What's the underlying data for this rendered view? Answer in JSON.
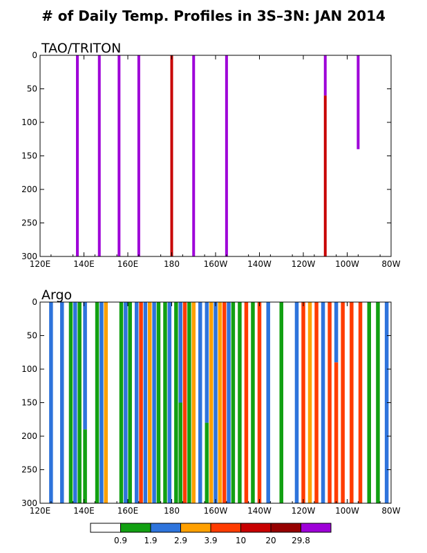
{
  "title": "# of Daily Temp. Profiles in 3S–3N: JAN 2014",
  "colors": {
    "white": "#ffffff",
    "green": "#12a012",
    "blue": "#2e74dc",
    "orange": "#ffa000",
    "red_orange": "#ff3c00",
    "red": "#c80000",
    "dark_red": "#960000",
    "purple": "#9e00d8"
  },
  "colorbar": {
    "colors": [
      "#ffffff",
      "#12a012",
      "#2e74dc",
      "#ffa000",
      "#ff3c00",
      "#c80000",
      "#960000",
      "#9e00d8"
    ],
    "labels": [
      "0.9",
      "1.9",
      "2.9",
      "3.9",
      "10",
      "20",
      "29.8"
    ]
  },
  "chart_data": [
    {
      "type": "bar",
      "title": "TAO/TRITON",
      "x_ticks": [
        "120E",
        "140E",
        "160E",
        "180",
        "160W",
        "140W",
        "120W",
        "100W",
        "80W"
      ],
      "y_ticks": [
        "0",
        "50",
        "100",
        "150",
        "200",
        "250",
        "300"
      ],
      "xlim": [
        120,
        280
      ],
      "ylim": [
        300,
        0
      ],
      "profiles": [
        {
          "lon": 137,
          "segments": [
            {
              "from": 0,
              "to": 300,
              "color": "#9e00d8"
            }
          ]
        },
        {
          "lon": 147,
          "segments": [
            {
              "from": 0,
              "to": 300,
              "color": "#9e00d8"
            }
          ]
        },
        {
          "lon": 156,
          "segments": [
            {
              "from": 0,
              "to": 300,
              "color": "#9e00d8"
            }
          ]
        },
        {
          "lon": 165,
          "segments": [
            {
              "from": 0,
              "to": 300,
              "color": "#9e00d8"
            }
          ]
        },
        {
          "lon": 180,
          "segments": [
            {
              "from": 0,
              "to": 300,
              "color": "#c80000"
            }
          ]
        },
        {
          "lon": 190,
          "segments": [
            {
              "from": 0,
              "to": 300,
              "color": "#9e00d8"
            }
          ]
        },
        {
          "lon": 205,
          "segments": [
            {
              "from": 0,
              "to": 300,
              "color": "#9e00d8"
            }
          ]
        },
        {
          "lon": 250,
          "segments": [
            {
              "from": 0,
              "to": 60,
              "color": "#9e00d8"
            },
            {
              "from": 60,
              "to": 300,
              "color": "#c80000"
            }
          ]
        },
        {
          "lon": 265,
          "segments": [
            {
              "from": 0,
              "to": 140,
              "color": "#9e00d8"
            }
          ]
        }
      ]
    },
    {
      "type": "bar",
      "title": "Argo",
      "x_ticks": [
        "120E",
        "140E",
        "160E",
        "180",
        "160W",
        "140W",
        "120W",
        "100W",
        "80W"
      ],
      "y_ticks": [
        "0",
        "50",
        "100",
        "150",
        "200",
        "250",
        "300"
      ],
      "xlim": [
        120,
        280
      ],
      "ylim": [
        300,
        0
      ],
      "profiles": [
        {
          "lon": 125,
          "segments": [
            {
              "from": 0,
              "to": 300,
              "color": "#2e74dc"
            }
          ]
        },
        {
          "lon": 130,
          "segments": [
            {
              "from": 0,
              "to": 300,
              "color": "#2e74dc"
            }
          ]
        },
        {
          "lon": 134,
          "segments": [
            {
              "from": 0,
              "to": 300,
              "color": "#12a012"
            }
          ]
        },
        {
          "lon": 136,
          "segments": [
            {
              "from": 0,
              "to": 300,
              "color": "#2e74dc"
            }
          ]
        },
        {
          "lon": 138,
          "segments": [
            {
              "from": 0,
              "to": 300,
              "color": "#12a012"
            }
          ]
        },
        {
          "lon": 140.5,
          "segments": [
            {
              "from": 0,
              "to": 190,
              "color": "#2e74dc"
            },
            {
              "from": 190,
              "to": 300,
              "color": "#12a012"
            }
          ]
        },
        {
          "lon": 146,
          "segments": [
            {
              "from": 0,
              "to": 300,
              "color": "#12a012"
            }
          ]
        },
        {
          "lon": 148,
          "segments": [
            {
              "from": 0,
              "to": 300,
              "color": "#2e74dc"
            }
          ]
        },
        {
          "lon": 150,
          "segments": [
            {
              "from": 0,
              "to": 300,
              "color": "#ffa000"
            }
          ]
        },
        {
          "lon": 157,
          "segments": [
            {
              "from": 0,
              "to": 300,
              "color": "#12a012"
            }
          ]
        },
        {
          "lon": 159,
          "segments": [
            {
              "from": 0,
              "to": 300,
              "color": "#2e74dc"
            }
          ]
        },
        {
          "lon": 161,
          "segments": [
            {
              "from": 0,
              "to": 300,
              "color": "#12a012"
            }
          ]
        },
        {
          "lon": 164,
          "segments": [
            {
              "from": 0,
              "to": 300,
              "color": "#2e74dc"
            }
          ]
        },
        {
          "lon": 166,
          "segments": [
            {
              "from": 0,
              "to": 300,
              "color": "#ff3c00"
            }
          ]
        },
        {
          "lon": 168,
          "segments": [
            {
              "from": 0,
              "to": 300,
              "color": "#2e74dc"
            }
          ]
        },
        {
          "lon": 170,
          "segments": [
            {
              "from": 0,
              "to": 300,
              "color": "#ffa000"
            }
          ]
        },
        {
          "lon": 172,
          "segments": [
            {
              "from": 0,
              "to": 300,
              "color": "#2e74dc"
            }
          ]
        },
        {
          "lon": 174,
          "segments": [
            {
              "from": 0,
              "to": 300,
              "color": "#12a012"
            }
          ]
        },
        {
          "lon": 177,
          "segments": [
            {
              "from": 0,
              "to": 300,
              "color": "#12a012"
            }
          ]
        },
        {
          "lon": 179,
          "segments": [
            {
              "from": 0,
              "to": 300,
              "color": "#2e74dc"
            }
          ]
        },
        {
          "lon": 182,
          "segments": [
            {
              "from": 0,
              "to": 300,
              "color": "#12a012"
            }
          ]
        },
        {
          "lon": 184,
          "segments": [
            {
              "from": 0,
              "to": 150,
              "color": "#2e74dc"
            },
            {
              "from": 150,
              "to": 300,
              "color": "#12a012"
            }
          ]
        },
        {
          "lon": 186,
          "segments": [
            {
              "from": 0,
              "to": 300,
              "color": "#ff3c00"
            }
          ]
        },
        {
          "lon": 188,
          "segments": [
            {
              "from": 0,
              "to": 300,
              "color": "#12a012"
            }
          ]
        },
        {
          "lon": 190,
          "segments": [
            {
              "from": 0,
              "to": 300,
              "color": "#ffa000"
            }
          ]
        },
        {
          "lon": 193,
          "segments": [
            {
              "from": 0,
              "to": 300,
              "color": "#2e74dc"
            }
          ]
        },
        {
          "lon": 196,
          "segments": [
            {
              "from": 0,
              "to": 180,
              "color": "#2e74dc"
            },
            {
              "from": 180,
              "to": 300,
              "color": "#12a012"
            }
          ]
        },
        {
          "lon": 198,
          "segments": [
            {
              "from": 0,
              "to": 300,
              "color": "#ffa000"
            }
          ]
        },
        {
          "lon": 200,
          "segments": [
            {
              "from": 0,
              "to": 300,
              "color": "#2e74dc"
            }
          ]
        },
        {
          "lon": 202,
          "segments": [
            {
              "from": 0,
              "to": 300,
              "color": "#ffa000"
            }
          ]
        },
        {
          "lon": 204,
          "segments": [
            {
              "from": 0,
              "to": 300,
              "color": "#ff3c00"
            }
          ]
        },
        {
          "lon": 206,
          "segments": [
            {
              "from": 0,
              "to": 300,
              "color": "#2e74dc"
            }
          ]
        },
        {
          "lon": 208,
          "segments": [
            {
              "from": 0,
              "to": 300,
              "color": "#12a012"
            }
          ]
        },
        {
          "lon": 211,
          "segments": [
            {
              "from": 0,
              "to": 300,
              "color": "#12a012"
            }
          ]
        },
        {
          "lon": 214,
          "segments": [
            {
              "from": 0,
              "to": 300,
              "color": "#ff3c00"
            }
          ]
        },
        {
          "lon": 217,
          "segments": [
            {
              "from": 0,
              "to": 300,
              "color": "#12a012"
            }
          ]
        },
        {
          "lon": 220,
          "segments": [
            {
              "from": 0,
              "to": 300,
              "color": "#ff3c00"
            }
          ]
        },
        {
          "lon": 224,
          "segments": [
            {
              "from": 0,
              "to": 300,
              "color": "#2e74dc"
            }
          ]
        },
        {
          "lon": 230,
          "segments": [
            {
              "from": 0,
              "to": 300,
              "color": "#12a012"
            }
          ]
        },
        {
          "lon": 237,
          "segments": [
            {
              "from": 0,
              "to": 300,
              "color": "#2e74dc"
            }
          ]
        },
        {
          "lon": 240,
          "segments": [
            {
              "from": 0,
              "to": 300,
              "color": "#ff3c00"
            }
          ]
        },
        {
          "lon": 243,
          "segments": [
            {
              "from": 0,
              "to": 300,
              "color": "#ffa000"
            }
          ]
        },
        {
          "lon": 246,
          "segments": [
            {
              "from": 0,
              "to": 300,
              "color": "#ff3c00"
            }
          ]
        },
        {
          "lon": 249,
          "segments": [
            {
              "from": 0,
              "to": 300,
              "color": "#2e74dc"
            }
          ]
        },
        {
          "lon": 252,
          "segments": [
            {
              "from": 0,
              "to": 300,
              "color": "#ff3c00"
            }
          ]
        },
        {
          "lon": 255,
          "segments": [
            {
              "from": 0,
              "to": 90,
              "color": "#2e74dc"
            },
            {
              "from": 90,
              "to": 300,
              "color": "#ff3c00"
            }
          ]
        },
        {
          "lon": 258,
          "segments": [
            {
              "from": 0,
              "to": 300,
              "color": "#ff3c00"
            }
          ]
        },
        {
          "lon": 262,
          "segments": [
            {
              "from": 0,
              "to": 300,
              "color": "#ff3c00"
            }
          ]
        },
        {
          "lon": 266,
          "segments": [
            {
              "from": 0,
              "to": 300,
              "color": "#ff3c00"
            }
          ]
        },
        {
          "lon": 270,
          "segments": [
            {
              "from": 0,
              "to": 300,
              "color": "#12a012"
            }
          ]
        },
        {
          "lon": 274,
          "segments": [
            {
              "from": 0,
              "to": 300,
              "color": "#12a012"
            }
          ]
        },
        {
          "lon": 278,
          "segments": [
            {
              "from": 0,
              "to": 300,
              "color": "#2e74dc"
            }
          ]
        }
      ]
    }
  ]
}
